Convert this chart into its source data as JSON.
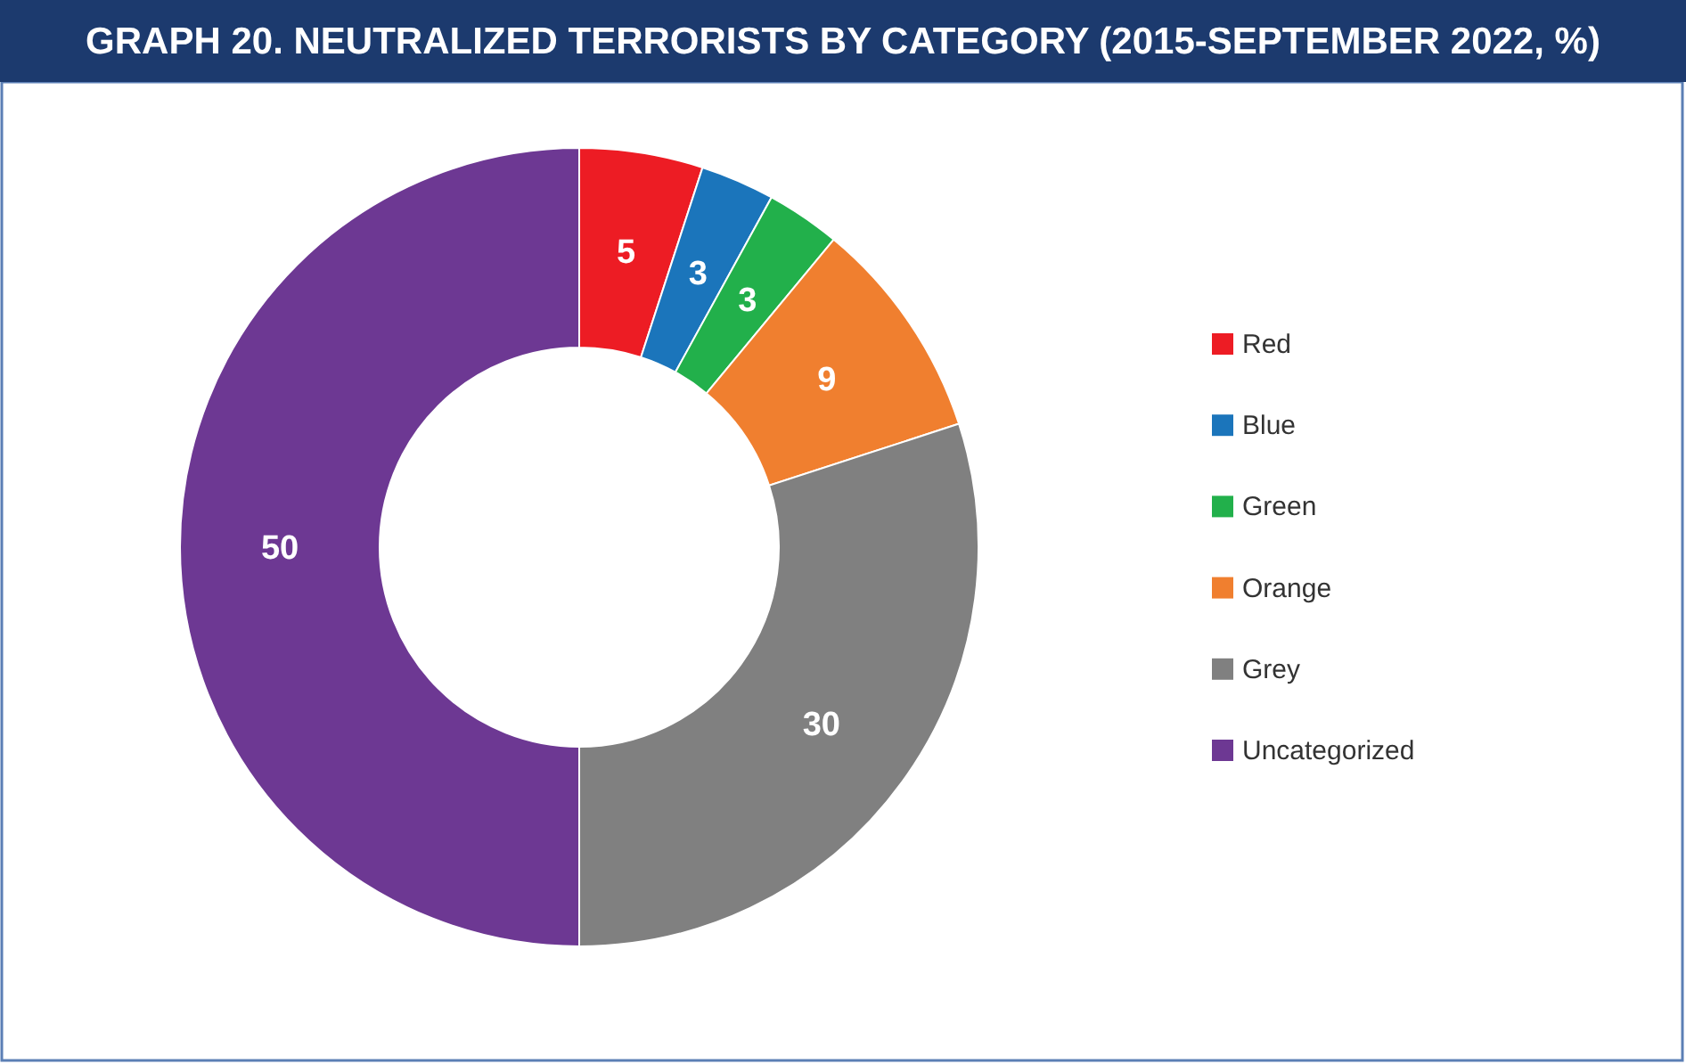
{
  "chart_data": {
    "type": "donut",
    "title": "GRAPH 20. NEUTRALIZED TERRORISTS BY CATEGORY (2015-SEPTEMBER 2022, %)",
    "categories": [
      "Red",
      "Blue",
      "Green",
      "Orange",
      "Grey",
      "Uncategorized"
    ],
    "values": [
      5,
      3,
      3,
      9,
      30,
      50
    ],
    "colors": [
      "#ed1c24",
      "#1b75bb",
      "#22b04b",
      "#f07f2f",
      "#808080",
      "#6d3893"
    ],
    "data_labels": true,
    "legend": "right"
  }
}
